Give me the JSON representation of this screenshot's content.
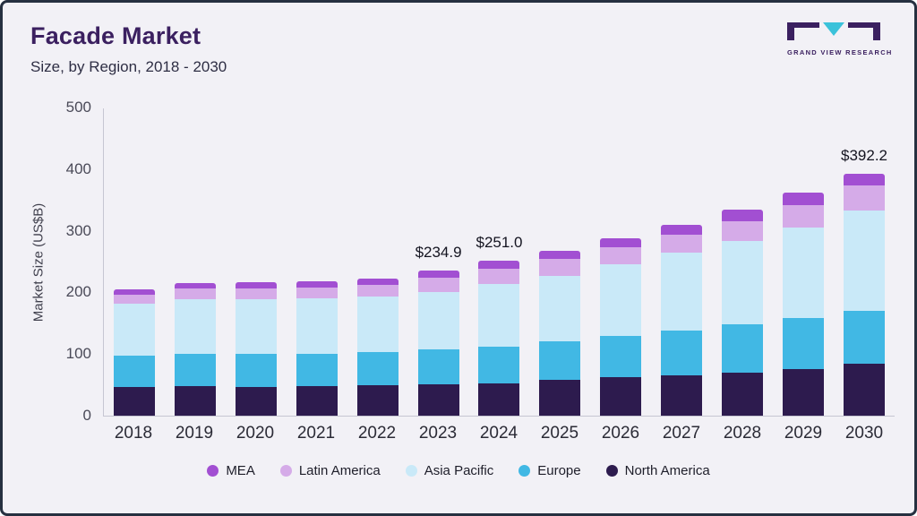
{
  "header": {
    "title": "Facade Market",
    "subtitle": "Size, by Region, 2018 - 2030"
  },
  "logo": {
    "text": "GRAND VIEW RESEARCH",
    "mark_dark_color": "#3b2060",
    "mark_teal_color": "#3bc2da"
  },
  "chart_data": {
    "type": "bar",
    "stacked": true,
    "title": "Facade Market",
    "subtitle": "Size, by Region, 2018 - 2030",
    "xlabel": "",
    "ylabel": "Market Size (US$B)",
    "ylim": [
      0,
      500
    ],
    "yticks": [
      0,
      100,
      200,
      300,
      400,
      500
    ],
    "grid": false,
    "legend_position": "bottom",
    "categories": [
      "2018",
      "2019",
      "2020",
      "2021",
      "2022",
      "2023",
      "2024",
      "2025",
      "2026",
      "2027",
      "2028",
      "2029",
      "2030"
    ],
    "series": [
      {
        "name": "North America",
        "color": "#2d1b4e",
        "values": [
          46,
          48,
          47,
          48,
          49,
          51,
          53,
          58,
          62,
          66,
          70,
          75,
          84
        ]
      },
      {
        "name": "Europe",
        "color": "#41b8e4",
        "values": [
          51,
          53,
          53,
          53,
          54,
          56,
          59,
          62,
          67,
          72,
          78,
          84,
          86
        ]
      },
      {
        "name": "Asia Pacific",
        "color": "#c9e9f8",
        "values": [
          85,
          88,
          89,
          89,
          90,
          93,
          101,
          107,
          116,
          126,
          136,
          147,
          163
        ]
      },
      {
        "name": "Latin America",
        "color": "#d5abe8",
        "values": [
          15,
          17,
          18,
          18,
          19,
          24,
          25,
          27,
          28,
          30,
          32,
          36,
          40
        ]
      },
      {
        "name": "MEA",
        "color": "#a24fd2",
        "values": [
          8,
          9,
          9,
          10,
          10,
          10.9,
          13,
          14,
          15,
          16,
          19,
          20,
          19.2
        ]
      }
    ],
    "totals": [
      205,
      215,
      216,
      218,
      222,
      234.9,
      251.0,
      268,
      288,
      310,
      335,
      362,
      392.2
    ],
    "bar_labels": [
      null,
      null,
      null,
      null,
      null,
      "$234.9",
      "$251.0",
      null,
      null,
      null,
      null,
      null,
      "$392.2"
    ],
    "legend": [
      "MEA",
      "Latin America",
      "Asia Pacific",
      "Europe",
      "North America"
    ]
  }
}
